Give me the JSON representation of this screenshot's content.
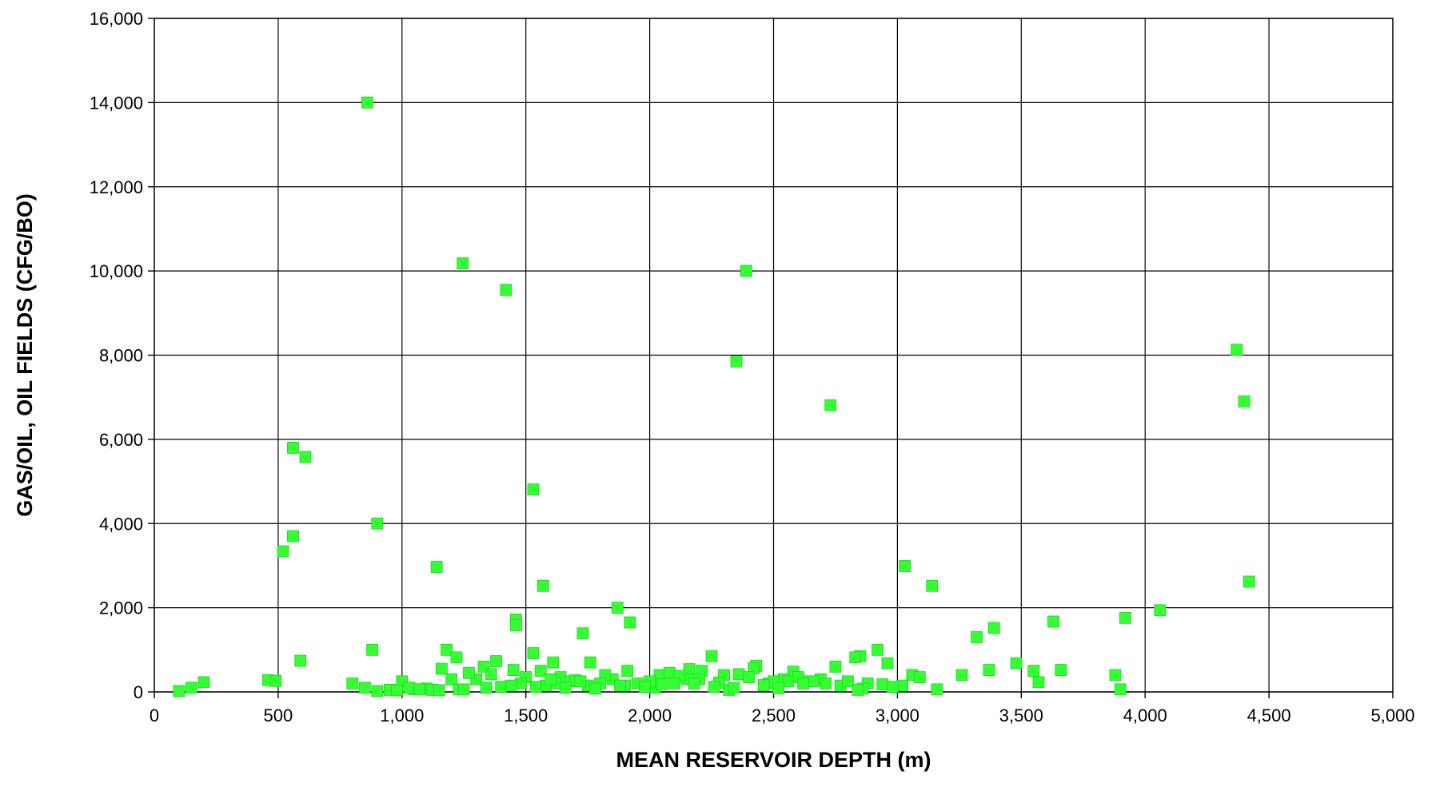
{
  "chart_data": {
    "type": "scatter",
    "title": "",
    "xlabel": "MEAN RESERVOIR DEPTH (m)",
    "ylabel": "GAS/OIL, OIL FIELDS (CFG/BO)",
    "xlim": [
      0,
      5000
    ],
    "ylim": [
      0,
      16000
    ],
    "x_ticks": [
      0,
      500,
      1000,
      1500,
      2000,
      2500,
      3000,
      3500,
      4000,
      4500,
      5000
    ],
    "y_ticks": [
      0,
      2000,
      4000,
      6000,
      8000,
      10000,
      12000,
      14000,
      16000
    ],
    "x_tick_labels": [
      "0",
      "500",
      "1,000",
      "1,500",
      "2,000",
      "2,500",
      "3,000",
      "3,500",
      "4,000",
      "4,500",
      "5,000"
    ],
    "y_tick_labels": [
      "0",
      "2,000",
      "4,000",
      "6,000",
      "8,000",
      "10,000",
      "12,000",
      "14,000",
      "16,000"
    ],
    "grid": true,
    "legend": "none",
    "marker": "square",
    "marker_color": "#33ff33",
    "series": [
      {
        "x": [
          860,
          1245,
          2390,
          1420,
          4370,
          2350,
          4400,
          2730,
          560,
          610,
          1530,
          900,
          560,
          520,
          1140,
          3030,
          4420,
          1570,
          3140,
          1870,
          4060,
          1460,
          3920,
          1920,
          1460,
          3630,
          3390,
          1730,
          3320,
          880,
          1180,
          2920,
          2850,
          2830,
          1530,
          2250,
          1220,
          3480,
          590,
          2960,
          1380,
          2750,
          1610,
          1760,
          3060,
          2430,
          3660,
          2160,
          2420,
          3370,
          2210,
          3550,
          3880,
          1910,
          3260,
          3090,
          1330,
          1450,
          2580,
          2300,
          3570,
          460,
          490,
          200,
          800,
          1000,
          1300,
          1640,
          1850,
          2040,
          2080,
          2600,
          2690,
          2640,
          2880,
          3020,
          150,
          100,
          3160,
          3900,
          2320,
          2020,
          1750,
          1620,
          1100,
          1050,
          950,
          850,
          1200,
          1500,
          1680,
          1950,
          2150,
          2480,
          2770,
          2800,
          2940,
          1160,
          1270,
          1360,
          1560,
          1820,
          2120,
          2360,
          2540,
          2660,
          2710,
          1800,
          1900,
          2000,
          2100,
          2200,
          2400,
          2500,
          2620,
          1400,
          1480,
          1580,
          1700,
          2050,
          2280,
          2460,
          1030,
          1120,
          1230,
          1340,
          1440,
          1540,
          1660,
          1780,
          1880,
          1980,
          2180,
          2340,
          2560,
          2860,
          2980,
          900,
          980,
          1070,
          1150,
          1250,
          1600,
          1720,
          2260,
          2520,
          2840
        ],
        "y": [
          14000,
          10180,
          10000,
          9550,
          8130,
          7850,
          6900,
          6810,
          5800,
          5580,
          4810,
          4000,
          3700,
          3340,
          2970,
          2990,
          2620,
          2520,
          2520,
          2000,
          1940,
          1720,
          1760,
          1650,
          1580,
          1670,
          1520,
          1390,
          1300,
          1000,
          1000,
          1000,
          850,
          820,
          920,
          850,
          820,
          680,
          740,
          680,
          730,
          600,
          700,
          700,
          400,
          620,
          520,
          540,
          560,
          520,
          500,
          500,
          400,
          500,
          400,
          350,
          600,
          520,
          480,
          400,
          230,
          280,
          260,
          230,
          200,
          250,
          300,
          350,
          300,
          400,
          450,
          350,
          300,
          250,
          200,
          150,
          100,
          20,
          60,
          60,
          50,
          100,
          150,
          200,
          80,
          60,
          50,
          100,
          300,
          350,
          250,
          200,
          300,
          200,
          150,
          250,
          180,
          550,
          450,
          420,
          500,
          400,
          380,
          420,
          300,
          250,
          200,
          200,
          150,
          250,
          200,
          300,
          350,
          250,
          200,
          120,
          200,
          150,
          280,
          180,
          220,
          160,
          100,
          50,
          60,
          100,
          150,
          120,
          100,
          80,
          150,
          120,
          200,
          100,
          250,
          80,
          120,
          20,
          40,
          60,
          40,
          60,
          300,
          250,
          120,
          90,
          50
        ]
      }
    ]
  }
}
